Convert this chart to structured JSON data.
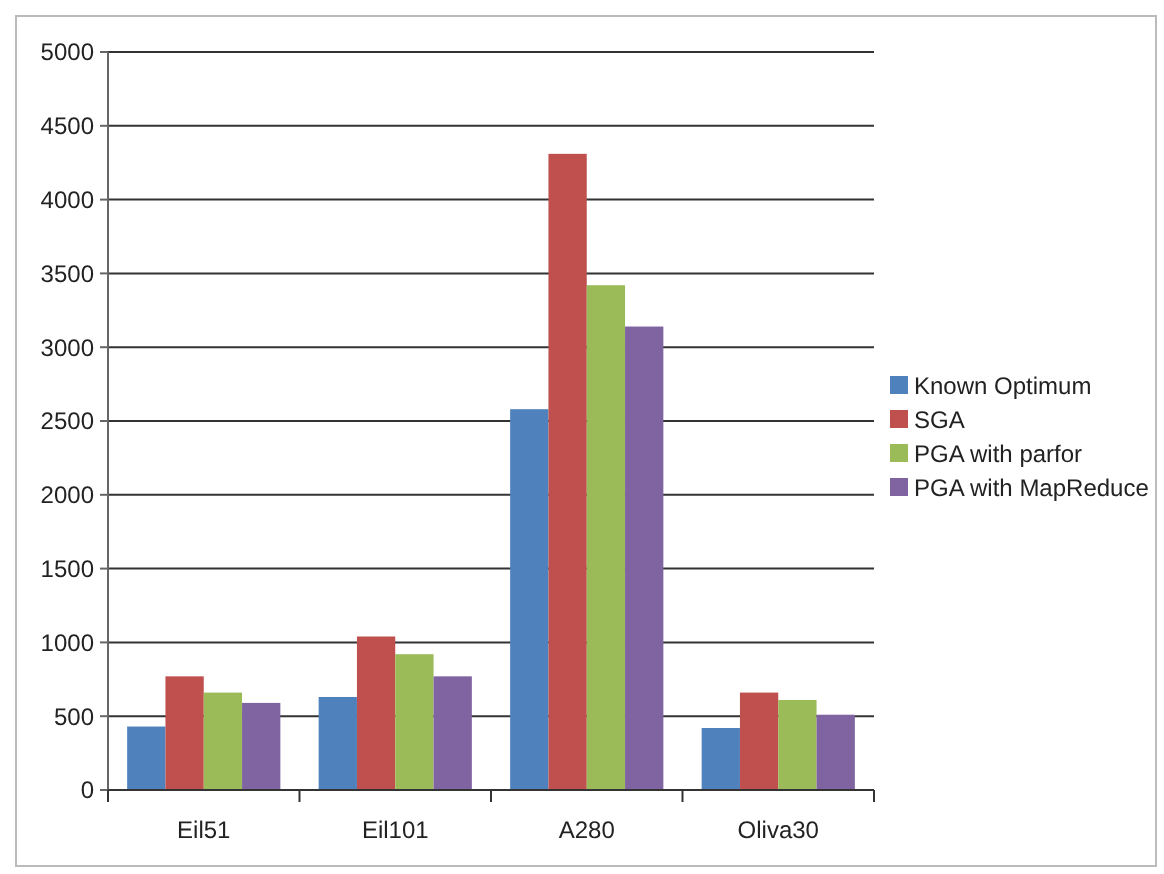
{
  "chart_data": {
    "type": "bar",
    "categories": [
      "Eil51",
      "Eil101",
      "A280",
      "Oliva30"
    ],
    "series": [
      {
        "name": "Known Optimum",
        "color": "#4f81bd",
        "values": [
          430,
          630,
          2580,
          420
        ]
      },
      {
        "name": "SGA",
        "color": "#c0504d",
        "values": [
          770,
          1040,
          4310,
          660
        ]
      },
      {
        "name": "PGA with parfor",
        "color": "#9bbb59",
        "values": [
          660,
          920,
          3420,
          610
        ]
      },
      {
        "name": "PGA with MapReduce",
        "color": "#8064a2",
        "values": [
          590,
          770,
          3140,
          510
        ]
      }
    ],
    "ylim": [
      0,
      5000
    ],
    "yticks": [
      0,
      500,
      1000,
      1500,
      2000,
      2500,
      3000,
      3500,
      4000,
      4500,
      5000
    ],
    "grid": "y",
    "legend": "right"
  }
}
